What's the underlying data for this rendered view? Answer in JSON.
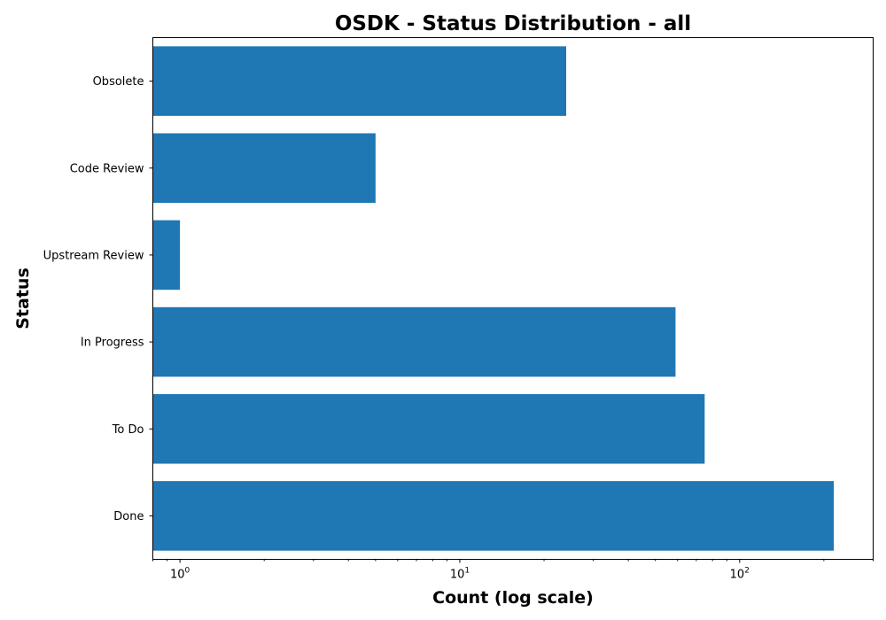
{
  "chart_data": {
    "type": "bar",
    "orientation": "horizontal",
    "title": "OSDK - Status Distribution - all",
    "xlabel": "Count (log scale)",
    "ylabel": "Status",
    "xscale": "log",
    "xlim": [
      0.8,
      300
    ],
    "categories": [
      "Obsolete",
      "Code Review",
      "Upstream Review",
      "In Progress",
      "To Do",
      "Done"
    ],
    "values": [
      24,
      5,
      1,
      59,
      75,
      217
    ],
    "xticks": [
      {
        "value": 1,
        "base": "10",
        "exp": "0"
      },
      {
        "value": 10,
        "base": "10",
        "exp": "1"
      },
      {
        "value": 100,
        "base": "10",
        "exp": "2"
      }
    ],
    "bar_color": "#1f77b4",
    "grid": false,
    "legend": "none"
  }
}
